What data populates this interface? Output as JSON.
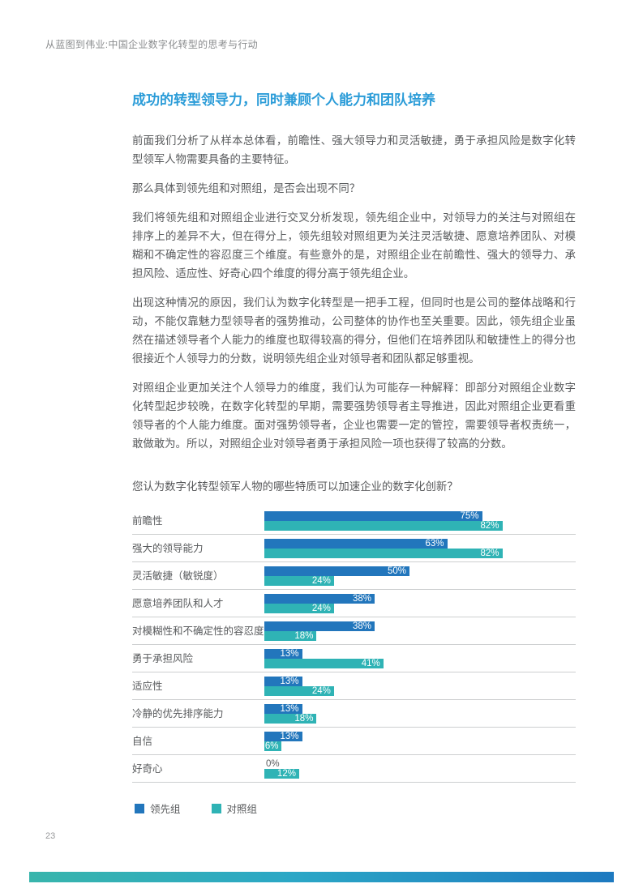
{
  "colors": {
    "accent_heading": "#2b9cd8",
    "bar_leading": "#2276bc",
    "bar_control": "#2fb3b5",
    "footer_gradient_start": "#38b5ac",
    "footer_gradient_mid": "#2ba7c6",
    "footer_gradient_end": "#1d79c0"
  },
  "header": {
    "title": "从蓝图到伟业:中国企业数字化转型的思考与行动"
  },
  "section": {
    "title": "成功的转型领导力，同时兼顾个人能力和团队培养",
    "paragraphs": [
      "前面我们分析了从样本总体看，前瞻性、强大领导力和灵活敏捷，勇于承担风险是数字化转型领军人物需要具备的主要特征。",
      "那么具体到领先组和对照组，是否会出现不同？",
      "我们将领先组和对照组企业进行交叉分析发现，领先组企业中，对领导力的关注与对照组在排序上的差异不大，但在得分上，领先组较对照组更为关注灵活敏捷、愿意培养团队、对模糊和不确定性的容忍度三个维度。有些意外的是，对照组企业在前瞻性、强大的领导力、承担风险、适应性、好奇心四个维度的得分高于领先组企业。",
      "出现这种情况的原因，我们认为数字化转型是一把手工程，但同时也是公司的整体战略和行动，不能仅靠魅力型领导者的强势推动，公司整体的协作也至关重要。因此，领先组企业虽然在描述领导者个人能力的维度也取得较高的得分，但他们在培养团队和敏捷性上的得分也很接近个人领导力的分数，说明领先组企业对领导者和团队都足够重视。",
      "对照组企业更加关注个人领导力的维度，我们认为可能存一种解释：即部分对照组企业数字化转型起步较晚，在数字化转型的早期，需要强势领导者主导推进，因此对照组企业更看重领导者的个人能力维度。面对强势领导者，企业也需要一定的管控，需要领导者权责统一，敢做敢为。所以，对照组企业对领导者勇于承担风险一项也获得了较高的分数。"
    ]
  },
  "chart_data": {
    "type": "bar",
    "orientation": "horizontal",
    "title": "您认为数字化转型领军人物的哪些特质可以加速企业的数字化创新？",
    "categories": [
      "前瞻性",
      "强大的领导能力",
      "灵活敏捷（敏锐度）",
      "愿意培养团队和人才",
      "对模糊性和不确定性的容忍度",
      "勇于承担风险",
      "适应性",
      "冷静的优先排序能力",
      "自信",
      "好奇心"
    ],
    "series": [
      {
        "name": "领先组",
        "key": "leading",
        "color": "#2276bc",
        "values": [
          75,
          63,
          50,
          38,
          38,
          13,
          13,
          13,
          13,
          0
        ]
      },
      {
        "name": "对照组",
        "key": "control",
        "color": "#2fb3b5",
        "values": [
          82,
          82,
          24,
          24,
          18,
          41,
          24,
          18,
          6,
          12
        ]
      }
    ],
    "value_suffix": "%",
    "xlim": [
      0,
      100
    ],
    "grid": false,
    "legend_position": "bottom"
  },
  "footer": {
    "page_number": "23"
  }
}
